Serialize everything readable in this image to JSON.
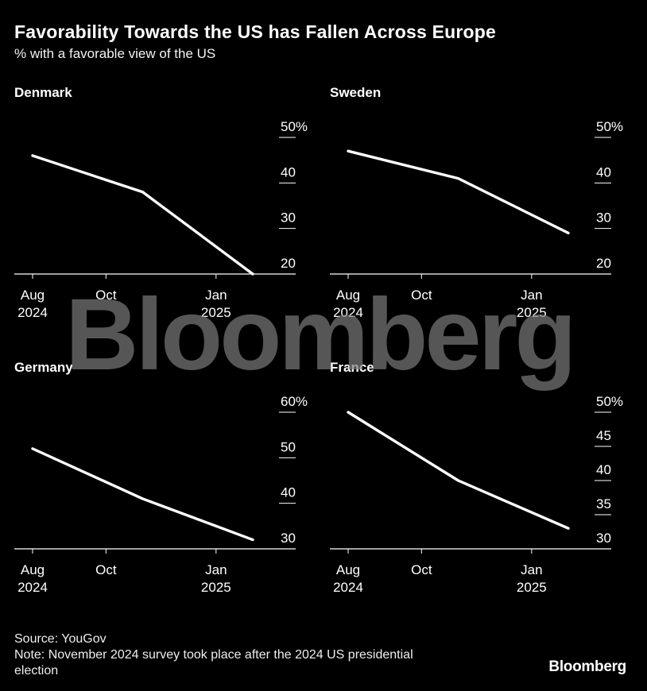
{
  "header": {
    "title": "Favorability Towards the US has Fallen Across Europe",
    "subtitle": "% with a favorable view of the US"
  },
  "chart_data": [
    {
      "type": "line",
      "title": "Denmark",
      "x": [
        "2024-08",
        "2024-11",
        "2025-02"
      ],
      "series": [
        {
          "values": [
            46,
            38,
            20
          ]
        }
      ],
      "x_ticks": [
        {
          "x": "2024-08",
          "label": [
            "Aug",
            "2024"
          ]
        },
        {
          "x": "2024-10",
          "label": [
            "Oct"
          ]
        },
        {
          "x": "2025-01",
          "label": [
            "Jan",
            "2025"
          ]
        }
      ],
      "y_ticks": [
        {
          "value": 50,
          "label": "50%"
        },
        {
          "value": 40,
          "label": "40"
        },
        {
          "value": 30,
          "label": "30"
        },
        {
          "value": 20,
          "label": "20"
        }
      ],
      "ylim": [
        20,
        50
      ]
    },
    {
      "type": "line",
      "title": "Sweden",
      "x": [
        "2024-08",
        "2024-11",
        "2025-02"
      ],
      "series": [
        {
          "values": [
            47,
            41,
            29
          ]
        }
      ],
      "x_ticks": [
        {
          "x": "2024-08",
          "label": [
            "Aug",
            "2024"
          ]
        },
        {
          "x": "2024-10",
          "label": [
            "Oct"
          ]
        },
        {
          "x": "2025-01",
          "label": [
            "Jan",
            "2025"
          ]
        }
      ],
      "y_ticks": [
        {
          "value": 50,
          "label": "50%"
        },
        {
          "value": 40,
          "label": "40"
        },
        {
          "value": 30,
          "label": "30"
        },
        {
          "value": 20,
          "label": "20"
        }
      ],
      "ylim": [
        20,
        50
      ]
    },
    {
      "type": "line",
      "title": "Germany",
      "x": [
        "2024-08",
        "2024-11",
        "2025-02"
      ],
      "series": [
        {
          "values": [
            52,
            41,
            32
          ]
        }
      ],
      "x_ticks": [
        {
          "x": "2024-08",
          "label": [
            "Aug",
            "2024"
          ]
        },
        {
          "x": "2024-10",
          "label": [
            "Oct"
          ]
        },
        {
          "x": "2025-01",
          "label": [
            "Jan",
            "2025"
          ]
        }
      ],
      "y_ticks": [
        {
          "value": 60,
          "label": "60%"
        },
        {
          "value": 50,
          "label": "50"
        },
        {
          "value": 40,
          "label": "40"
        },
        {
          "value": 30,
          "label": "30"
        }
      ],
      "ylim": [
        30,
        60
      ]
    },
    {
      "type": "line",
      "title": "France",
      "x": [
        "2024-08",
        "2024-11",
        "2025-02"
      ],
      "series": [
        {
          "values": [
            50,
            40,
            33
          ]
        }
      ],
      "x_ticks": [
        {
          "x": "2024-08",
          "label": [
            "Aug",
            "2024"
          ]
        },
        {
          "x": "2024-10",
          "label": [
            "Oct"
          ]
        },
        {
          "x": "2025-01",
          "label": [
            "Jan",
            "2025"
          ]
        }
      ],
      "y_ticks": [
        {
          "value": 50,
          "label": "50%"
        },
        {
          "value": 45,
          "label": "45"
        },
        {
          "value": 40,
          "label": "40"
        },
        {
          "value": 35,
          "label": "35"
        },
        {
          "value": 30,
          "label": "30"
        }
      ],
      "ylim": [
        30,
        50
      ]
    }
  ],
  "footer": {
    "source": "Source: YouGov",
    "note": "Note: November 2024 survey took place after the 2024 US presidential election",
    "logo": "Bloomberg"
  },
  "watermark": "Bloomberg",
  "colors": {
    "background": "#000000",
    "line": "#ffffff",
    "axis": "#ffffff",
    "watermark": "#7b7b7b"
  }
}
